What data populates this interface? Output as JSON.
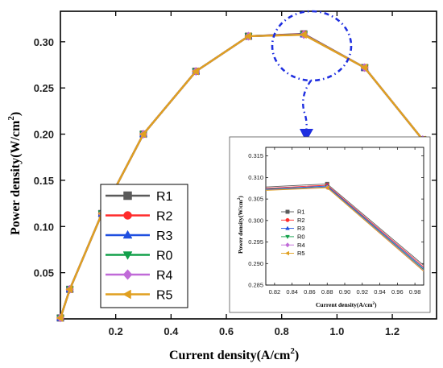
{
  "chart_data": [
    {
      "type": "line",
      "xlabel": "Current density(A/cm",
      "xlabel_sup": "2",
      "xlabel_end": ")",
      "ylabel": "Power density(W/cm",
      "ylabel_sup": "2",
      "ylabel_end": ")",
      "xlim": [
        0,
        1.36
      ],
      "ylim": [
        0,
        0.333
      ],
      "xticks": [
        0.2,
        0.4,
        0.6,
        0.8,
        1.0,
        1.2
      ],
      "xtick_labels": [
        "0.2",
        "0.4",
        "0.6",
        "0.8",
        "1.0",
        "1.2"
      ],
      "yticks": [
        0.05,
        0.1,
        0.15,
        0.2,
        0.25,
        0.3
      ],
      "ytick_labels": [
        "0.05",
        "0.10",
        "0.15",
        "0.20",
        "0.25",
        "0.30"
      ],
      "legend_position": "lower-left",
      "series": [
        {
          "name": "R1",
          "color": "#5a5a5a",
          "marker": "square",
          "x": [
            0.0,
            0.034,
            0.15,
            0.3,
            0.49,
            0.68,
            0.88,
            1.1,
            1.31
          ],
          "y": [
            0.001,
            0.032,
            0.114,
            0.2,
            0.268,
            0.306,
            0.3085,
            0.272,
            0.194
          ]
        },
        {
          "name": "R2",
          "color": "#ff2b2b",
          "marker": "circle",
          "x": [
            0.0,
            0.034,
            0.15,
            0.3,
            0.49,
            0.68,
            0.88,
            1.1,
            1.31
          ],
          "y": [
            0.001,
            0.032,
            0.114,
            0.2,
            0.268,
            0.306,
            0.3082,
            0.272,
            0.194
          ]
        },
        {
          "name": "R3",
          "color": "#1f4fe0",
          "marker": "triangle-up",
          "x": [
            0.0,
            0.034,
            0.15,
            0.3,
            0.49,
            0.68,
            0.88,
            1.1,
            1.31
          ],
          "y": [
            0.001,
            0.032,
            0.114,
            0.2,
            0.268,
            0.306,
            0.308,
            0.272,
            0.194
          ]
        },
        {
          "name": "R0",
          "color": "#12a04a",
          "marker": "triangle-down",
          "x": [
            0.0,
            0.034,
            0.15,
            0.3,
            0.49,
            0.68,
            0.88,
            1.1,
            1.31
          ],
          "y": [
            0.001,
            0.032,
            0.114,
            0.2,
            0.268,
            0.306,
            0.3078,
            0.272,
            0.194
          ]
        },
        {
          "name": "R4",
          "color": "#c06ad8",
          "marker": "diamond",
          "x": [
            0.0,
            0.034,
            0.15,
            0.3,
            0.49,
            0.68,
            0.88,
            1.1,
            1.31
          ],
          "y": [
            0.001,
            0.032,
            0.114,
            0.2,
            0.268,
            0.306,
            0.3077,
            0.272,
            0.194
          ]
        },
        {
          "name": "R5",
          "color": "#e0a020",
          "marker": "triangle-left",
          "x": [
            0.0,
            0.034,
            0.15,
            0.3,
            0.49,
            0.68,
            0.88,
            1.1,
            1.31
          ],
          "y": [
            0.001,
            0.032,
            0.114,
            0.2,
            0.268,
            0.306,
            0.3076,
            0.272,
            0.194
          ]
        }
      ]
    },
    {
      "type": "line",
      "role": "inset",
      "xlabel": "Current density(A/cm",
      "xlabel_sup": "2",
      "xlabel_end": ")",
      "ylabel": "Power density(W/cm",
      "ylabel_sup": "2",
      "ylabel_end": ")",
      "xlim": [
        0.81,
        0.99
      ],
      "ylim": [
        0.285,
        0.317
      ],
      "xticks": [
        0.82,
        0.84,
        0.86,
        0.88,
        0.9,
        0.92,
        0.94,
        0.96,
        0.98
      ],
      "xtick_labels": [
        "0.82",
        "0.84",
        "0.86",
        "0.88",
        "0.90",
        "0.92",
        "0.94",
        "0.96",
        "0.98"
      ],
      "yticks": [
        0.285,
        0.29,
        0.295,
        0.3,
        0.305,
        0.31,
        0.315
      ],
      "ytick_labels": [
        "0.285",
        "0.290",
        "0.295",
        "0.300",
        "0.305",
        "0.310",
        "0.315"
      ],
      "legend_position": "left",
      "series": [
        {
          "name": "R1",
          "color": "#5a5a5a",
          "marker": "square",
          "x": [
            0.81,
            0.88,
            0.99
          ],
          "y": [
            0.3078,
            0.3085,
            0.2896
          ]
        },
        {
          "name": "R2",
          "color": "#ff2b2b",
          "marker": "circle",
          "x": [
            0.81,
            0.88,
            0.99
          ],
          "y": [
            0.3075,
            0.3082,
            0.2892
          ]
        },
        {
          "name": "R3",
          "color": "#1f4fe0",
          "marker": "triangle-up",
          "x": [
            0.81,
            0.88,
            0.99
          ],
          "y": [
            0.3073,
            0.308,
            0.2889
          ]
        },
        {
          "name": "R0",
          "color": "#12a04a",
          "marker": "triangle-down",
          "x": [
            0.81,
            0.88,
            0.99
          ],
          "y": [
            0.3072,
            0.3078,
            0.2886
          ]
        },
        {
          "name": "R4",
          "color": "#c06ad8",
          "marker": "diamond",
          "x": [
            0.81,
            0.88,
            0.99
          ],
          "y": [
            0.3071,
            0.3077,
            0.2884
          ]
        },
        {
          "name": "R5",
          "color": "#e0a020",
          "marker": "triangle-left",
          "x": [
            0.81,
            0.88,
            0.99
          ],
          "y": [
            0.307,
            0.3076,
            0.2882
          ]
        }
      ]
    }
  ],
  "annotation_color": "#1f2fe0"
}
